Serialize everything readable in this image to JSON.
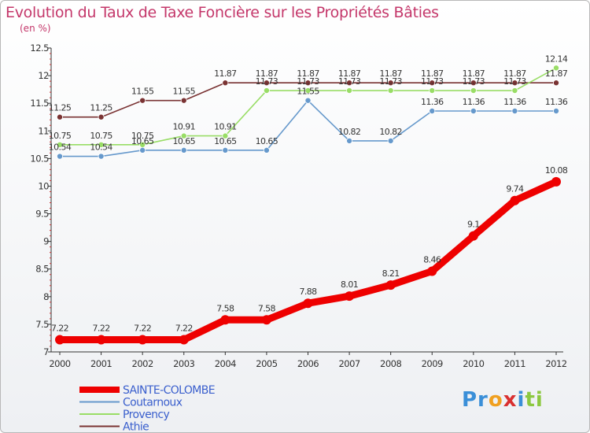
{
  "chart_data": {
    "type": "line",
    "title": "Evolution du Taux de Taxe Foncière sur les Propriétés Bâties",
    "ylabel": "(en %)",
    "xlabel": "",
    "x": [
      "2000",
      "2001",
      "2002",
      "2003",
      "2004",
      "2005",
      "2006",
      "2007",
      "2008",
      "2009",
      "2010",
      "2011",
      "2012"
    ],
    "ylim": [
      7,
      12.5
    ],
    "yticks": [
      "7",
      "7.5",
      "8",
      "8.5",
      "9",
      "9.5",
      "10",
      "10.5",
      "11",
      "11.5",
      "12",
      "12.5"
    ],
    "grid": false,
    "legend_position": "bottom-left",
    "series": [
      {
        "name": "SAINTE-COLOMBE",
        "color": "#ee0000",
        "values": [
          7.22,
          7.22,
          7.22,
          7.22,
          7.58,
          7.58,
          7.88,
          8.01,
          8.21,
          8.46,
          9.1,
          9.74,
          10.08
        ],
        "labels": [
          "7.22",
          "7.22",
          "7.22",
          "7.22",
          "7.58",
          "7.58",
          "7.88",
          "8.01",
          "8.21",
          "8.46",
          "9.1",
          "9.74",
          "10.08"
        ]
      },
      {
        "name": "Coutarnoux",
        "color": "#6699cc",
        "values": [
          10.54,
          10.54,
          10.65,
          10.65,
          10.65,
          10.65,
          11.55,
          10.82,
          10.82,
          11.36,
          11.36,
          11.36,
          11.36
        ],
        "labels": [
          "10.54",
          "10.54",
          "10.65",
          "10.65",
          "10.65",
          "10.65",
          "11.55",
          "10.82",
          "10.82",
          "11.36",
          "11.36",
          "11.36",
          "11.36"
        ]
      },
      {
        "name": "Provency",
        "color": "#99dd66",
        "values": [
          10.75,
          10.75,
          10.75,
          10.91,
          10.91,
          11.73,
          11.73,
          11.73,
          11.73,
          11.73,
          11.73,
          11.73,
          12.14
        ],
        "labels": [
          "10.75",
          "10.75",
          "10.75",
          "10.91",
          "10.91",
          "11.73",
          "11.73",
          "11.73",
          "11.73",
          "11.73",
          "11.73",
          "11.73",
          "12.14"
        ]
      },
      {
        "name": "Athie",
        "color": "#7a3333",
        "values": [
          11.25,
          11.25,
          11.55,
          11.55,
          11.87,
          11.87,
          11.87,
          11.87,
          11.87,
          11.87,
          11.87,
          11.87,
          11.87
        ],
        "labels": [
          "11.25",
          "11.25",
          "11.55",
          "11.55",
          "11.87",
          "11.87",
          "11.87",
          "11.87",
          "11.87",
          "11.87",
          "11.87",
          "11.87",
          "11.87"
        ]
      }
    ]
  },
  "brand": {
    "logo_parts": [
      "Pr",
      "o",
      "x",
      "i",
      "ti"
    ],
    "logo_colors": [
      "#3a8fd8",
      "#f0a020",
      "#d93030",
      "#3a8fd8",
      "#8cc840"
    ]
  }
}
